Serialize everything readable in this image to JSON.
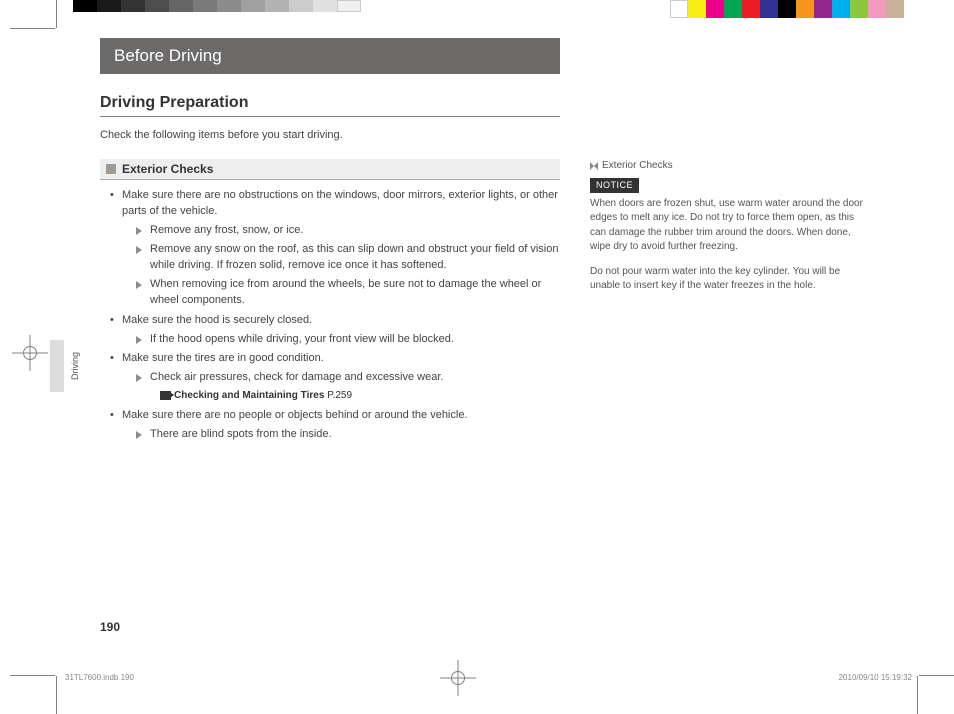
{
  "printer": {
    "grayscale_swatches": [
      "#000000",
      "#1a1a1a",
      "#333333",
      "#4d4d4d",
      "#666666",
      "#7a7a7a",
      "#8c8c8c",
      "#a0a0a0",
      "#b3b3b3",
      "#cccccc",
      "#e0e0e0",
      "#f0f0f0"
    ],
    "cmyk_swatches": [
      "#ffffff",
      "#f7ec13",
      "#ec008c",
      "#00a651",
      "#ed1c24",
      "#2e3192",
      "#000000",
      "#f7941d",
      "#92278f",
      "#00aeef",
      "#8dc63f",
      "#f49ac1",
      "#c7b299"
    ],
    "footer_file": "31TL7600.indb   190",
    "footer_timestamp": "2010/09/10   15:19:32"
  },
  "chapter": "Before Driving",
  "section": "Driving Preparation",
  "intro": "Check the following items before you start driving.",
  "subsection": {
    "title": "Exterior Checks",
    "items": [
      {
        "text": "Make sure there are no obstructions on the windows, door mirrors, exterior lights, or other parts of the vehicle.",
        "subs": [
          "Remove any frost, snow, or ice.",
          "Remove any snow on the roof, as this can slip down and obstruct your field of vision while driving. If frozen solid, remove ice once it has softened.",
          "When removing ice from around the wheels, be sure not to damage the wheel or wheel components."
        ]
      },
      {
        "text": "Make sure the hood is securely closed.",
        "subs": [
          "If the hood opens while driving, your front view will be blocked."
        ]
      },
      {
        "text": "Make sure the tires are in good condition.",
        "subs": [
          "Check air pressures, check for damage and excessive wear."
        ],
        "xref": {
          "label": "Checking and Maintaining Tires",
          "page": "P.259"
        }
      },
      {
        "text": "Make sure there are no people or objects behind or around the vehicle.",
        "subs": [
          "There are blind spots from the inside."
        ]
      }
    ]
  },
  "sidebar": {
    "heading": "Exterior Checks",
    "notice_label": "NOTICE",
    "para1": "When doors are frozen shut, use warm water around the door edges to melt any ice. Do not try to force them open, as this can damage the rubber trim around the doors. When done, wipe dry to avoid further freezing.",
    "para2": "Do not pour warm water into the key cylinder. You will be unable to insert key if the water freezes in the hole."
  },
  "edge_tab_label": "Driving",
  "page_number": "190"
}
